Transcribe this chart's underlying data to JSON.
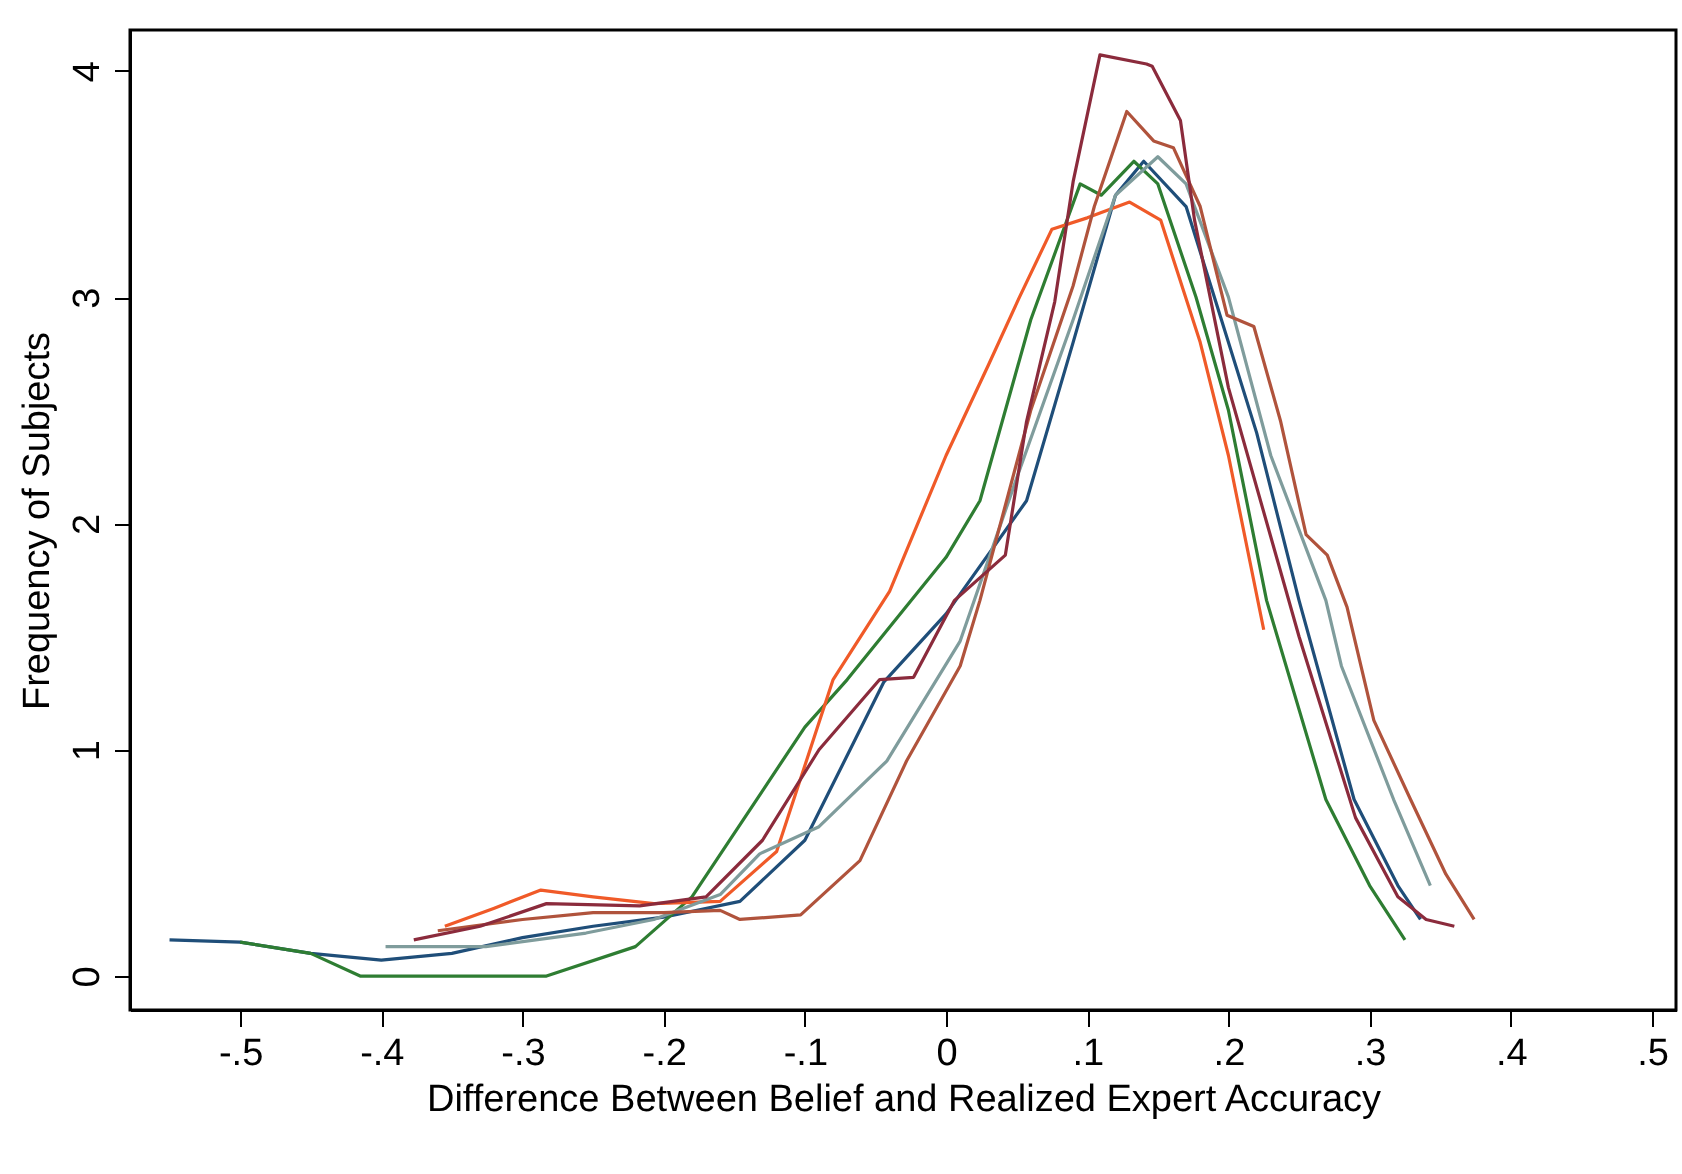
{
  "chart_data": {
    "type": "line",
    "xlabel": "Difference Between Belief and Realized Expert Accuracy",
    "ylabel": "Frequency of Subjects",
    "xlim": [
      -0.578,
      0.517
    ],
    "ylim": [
      -0.15,
      4.18
    ],
    "xticks": [
      {
        "value": -0.5,
        "label": "-.5"
      },
      {
        "value": -0.4,
        "label": "-.4"
      },
      {
        "value": -0.3,
        "label": "-.3"
      },
      {
        "value": -0.2,
        "label": "-.2"
      },
      {
        "value": -0.1,
        "label": "-.1"
      },
      0,
      {
        "value": 0.1,
        "label": ".1"
      },
      {
        "value": 0.2,
        "label": ".2"
      },
      {
        "value": 0.3,
        "label": ".3"
      },
      {
        "value": 0.4,
        "label": ".4"
      },
      {
        "value": 0.5,
        "label": ".5"
      }
    ],
    "yticks": [
      0,
      1,
      2,
      3,
      4
    ],
    "grid": false,
    "series": [
      {
        "color": "#1f4e79",
        "x": [
          -0.55,
          -0.5,
          -0.45,
          -0.4,
          -0.35,
          -0.3,
          -0.25,
          -0.2,
          -0.146,
          -0.1,
          -0.044,
          0,
          0.057,
          0.09,
          0.12,
          0.14,
          0.17,
          0.19,
          0.22,
          0.25,
          0.289,
          0.32,
          0.336
        ],
        "values": [
          0.16,
          0.15,
          0.1,
          0.07,
          0.1,
          0.17,
          0.22,
          0.26,
          0.33,
          0.6,
          1.3,
          1.6,
          2.1,
          2.8,
          3.45,
          3.6,
          3.4,
          3.0,
          2.4,
          1.66,
          0.78,
          0.4,
          0.25
        ]
      },
      {
        "color": "#2e7d32",
        "x": [
          -0.5,
          -0.45,
          -0.415,
          -0.35,
          -0.283,
          -0.22,
          -0.18,
          -0.1,
          -0.07,
          0,
          0.024,
          0.06,
          0.095,
          0.11,
          0.133,
          0.15,
          0.177,
          0.2,
          0.227,
          0.269,
          0.3,
          0.325
        ],
        "values": [
          0.15,
          0.1,
          0,
          0,
          0,
          0.13,
          0.35,
          1.1,
          1.31,
          1.85,
          2.1,
          2.9,
          3.5,
          3.45,
          3.6,
          3.5,
          3.0,
          2.5,
          1.66,
          0.78,
          0.4,
          0.16
        ]
      },
      {
        "color": "#f05a28",
        "x": [
          -0.355,
          -0.32,
          -0.287,
          -0.25,
          -0.207,
          -0.16,
          -0.12,
          -0.08,
          -0.04,
          -0.02,
          0,
          0.03,
          0.052,
          0.075,
          0.1,
          0.13,
          0.152,
          0.18,
          0.2,
          0.225
        ],
        "values": [
          0.22,
          0.3,
          0.38,
          0.35,
          0.32,
          0.33,
          0.55,
          1.31,
          1.7,
          2.0,
          2.3,
          2.7,
          3.0,
          3.3,
          3.35,
          3.42,
          3.34,
          2.8,
          2.3,
          1.53
        ]
      },
      {
        "color": "#7f9c9c",
        "x": [
          -0.397,
          -0.326,
          -0.255,
          -0.207,
          -0.16,
          -0.132,
          -0.09,
          -0.042,
          0.01,
          0.05,
          0.09,
          0.12,
          0.15,
          0.17,
          0.2,
          0.23,
          0.269,
          0.28,
          0.317,
          0.343
        ],
        "values": [
          0.13,
          0.13,
          0.19,
          0.25,
          0.36,
          0.54,
          0.66,
          0.95,
          1.48,
          2.2,
          2.9,
          3.45,
          3.62,
          3.5,
          3.0,
          2.3,
          1.66,
          1.37,
          0.78,
          0.4
        ]
      },
      {
        "color": "#b0533c",
        "x": [
          -0.36,
          -0.3,
          -0.25,
          -0.2,
          -0.16,
          -0.146,
          -0.103,
          -0.061,
          -0.028,
          0.01,
          0.024,
          0.06,
          0.09,
          0.105,
          0.128,
          0.147,
          0.161,
          0.18,
          0.199,
          0.218,
          0.237,
          0.255,
          0.27,
          0.284,
          0.303,
          0.329,
          0.354,
          0.374
        ],
        "values": [
          0.2,
          0.25,
          0.28,
          0.28,
          0.29,
          0.25,
          0.27,
          0.51,
          0.95,
          1.37,
          1.66,
          2.5,
          3.05,
          3.4,
          3.82,
          3.69,
          3.66,
          3.4,
          2.92,
          2.87,
          2.45,
          1.95,
          1.86,
          1.63,
          1.13,
          0.78,
          0.45,
          0.25
        ]
      },
      {
        "color": "#8b2b3c",
        "x": [
          -0.377,
          -0.33,
          -0.283,
          -0.217,
          -0.17,
          -0.13,
          -0.09,
          -0.047,
          -0.023,
          0.006,
          0.042,
          0.057,
          0.077,
          0.09,
          0.109,
          0.142,
          0.146,
          0.166,
          0.176,
          0.2,
          0.25,
          0.29,
          0.32,
          0.34,
          0.36
        ],
        "values": [
          0.16,
          0.22,
          0.32,
          0.31,
          0.35,
          0.6,
          1.0,
          1.31,
          1.32,
          1.66,
          1.86,
          2.45,
          2.98,
          3.51,
          4.07,
          4.03,
          4.02,
          3.78,
          3.34,
          2.6,
          1.5,
          0.7,
          0.35,
          0.25,
          0.22
        ]
      }
    ]
  }
}
